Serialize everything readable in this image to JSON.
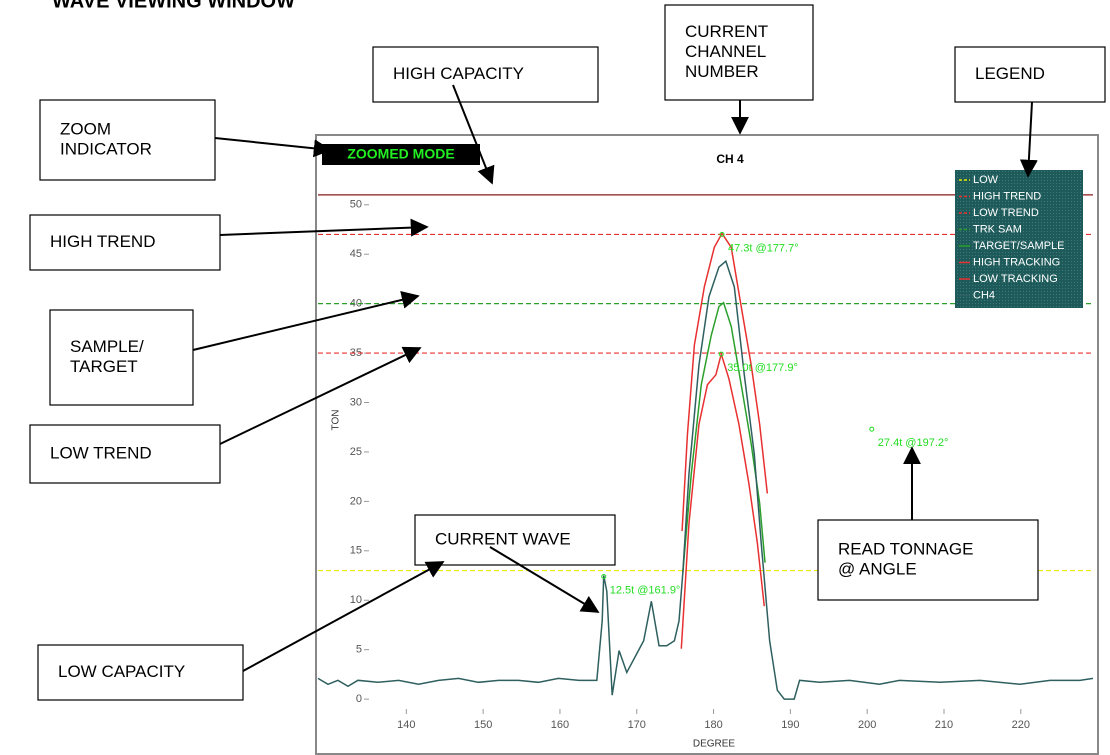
{
  "header": {
    "title": "WAVE VIEWING WINDOW"
  },
  "callouts": [
    {
      "lines": [
        "HIGH CAPACITY"
      ]
    },
    {
      "lines": [
        "CURRENT",
        "CHANNEL",
        "NUMBER"
      ]
    },
    {
      "lines": [
        "LEGEND"
      ]
    },
    {
      "lines": [
        "ZOOM",
        "INDICATOR"
      ]
    },
    {
      "lines": [
        "HIGH TREND"
      ]
    },
    {
      "lines": [
        "SAMPLE/",
        "TARGET"
      ]
    },
    {
      "lines": [
        "LOW TREND"
      ]
    },
    {
      "lines": [
        "CURRENT WAVE"
      ]
    },
    {
      "lines": [
        "READ TONNAGE",
        "@ ANGLE"
      ]
    },
    {
      "lines": [
        "LOW CAPACITY"
      ]
    }
  ],
  "chart_data": {
    "type": "line",
    "title": "CH 4",
    "mode_indicator": "ZOOMED MODE",
    "x_label": "DEGREE",
    "y_label": "TON",
    "xlim": [
      128.5,
      229.4
    ],
    "ylim": [
      -1,
      52
    ],
    "xticks": [
      140,
      150,
      160,
      170,
      180,
      190,
      200,
      210,
      220
    ],
    "yticks": [
      0,
      5,
      10,
      15,
      20,
      25,
      30,
      35,
      40,
      45,
      50
    ],
    "series": [
      {
        "name": "LOW",
        "color": "#e8e800",
        "dash": true,
        "value": 13
      },
      {
        "name": "HIGH TREND",
        "color": "#e83030",
        "dash": true,
        "value": 47
      },
      {
        "name": "LOW TREND",
        "color": "#e83030",
        "dash": true,
        "value": 35
      },
      {
        "name": "TRK SAM",
        "color": "#2aa02a",
        "dash": true,
        "value": 40
      },
      {
        "name": "TARGET/SAMPLE",
        "color": "#2aa02a",
        "dash": false,
        "x": [
          176.0,
          177.1,
          178.4,
          179.7,
          180.7,
          181.3,
          182.3,
          183.6,
          184.9,
          186.0,
          186.7
        ],
        "values": [
          12.8,
          22.8,
          31.8,
          36.8,
          39.7,
          40.1,
          37.7,
          31.8,
          25.8,
          19.8,
          13.8
        ]
      },
      {
        "name": "HIGH TRACKING",
        "color": "#e83030",
        "dash": false,
        "x": [
          175.9,
          176.6,
          177.5,
          178.8,
          180.1,
          181.1,
          182.3,
          183.6,
          184.9,
          186.0,
          187.0
        ],
        "values": [
          17.0,
          26.8,
          35.8,
          41.7,
          45.7,
          47.1,
          45.7,
          39.7,
          33.8,
          27.8,
          20.8
        ]
      },
      {
        "name": "LOW TRACKING",
        "color": "#e83030",
        "dash": false,
        "x": [
          175.8,
          176.8,
          178.1,
          179.2,
          180.3,
          181.0,
          182.0,
          183.3,
          184.6,
          185.7,
          186.6
        ],
        "values": [
          5.1,
          17.8,
          27.8,
          31.8,
          32.8,
          34.9,
          32.4,
          27.8,
          21.8,
          15.8,
          9.4
        ]
      },
      {
        "name": "CH4",
        "color": "#2f5f5f",
        "dash": false,
        "x": [
          128.5,
          129.8,
          131.1,
          132.4,
          133.7,
          136.3,
          139.0,
          141.6,
          144.2,
          146.8,
          149.4,
          152.0,
          154.6,
          157.2,
          159.8,
          162.5,
          164.8,
          165.5,
          165.7,
          166.1,
          166.8,
          167.7,
          168.7,
          169.8,
          170.9,
          171.9,
          172.9,
          173.9,
          174.9,
          175.5,
          176.0,
          176.8,
          178.1,
          179.4,
          180.7,
          181.6,
          182.7,
          184.0,
          185.3,
          186.2,
          187.3,
          188.3,
          189.2,
          190.5,
          191.2,
          193.8,
          197.7,
          201.6,
          204.2,
          209.5,
          214.7,
          219.9,
          223.8,
          227.7,
          229.4
        ],
        "values": [
          2.1,
          1.5,
          1.9,
          1.3,
          1.9,
          1.7,
          1.9,
          1.5,
          1.9,
          2.1,
          1.7,
          1.9,
          1.9,
          1.7,
          2.1,
          1.9,
          1.9,
          7.9,
          12.5,
          10.9,
          0.4,
          4.9,
          2.7,
          4.3,
          5.9,
          9.9,
          5.4,
          5.4,
          5.9,
          7.9,
          12.8,
          22.8,
          33.8,
          40.7,
          43.7,
          44.3,
          41.7,
          32.8,
          24.8,
          15.8,
          5.9,
          0.9,
          0,
          0,
          1.9,
          1.7,
          1.9,
          1.5,
          1.9,
          1.7,
          1.9,
          1.5,
          1.9,
          1.9,
          2.1
        ]
      },
      {
        "color": "#8b1a1a",
        "dash": false,
        "value": 51
      }
    ],
    "annotations": [
      {
        "text": "47.3t @177.7°",
        "x": 181.1,
        "y": 47.0
      },
      {
        "text": "35.0t @177.9°",
        "x": 181.0,
        "y": 34.9
      },
      {
        "text": "12.5t @161.9°",
        "x": 165.7,
        "y": 12.4
      },
      {
        "text": "27.4t @197.2°",
        "x": 200.6,
        "y": 27.3
      }
    ]
  }
}
